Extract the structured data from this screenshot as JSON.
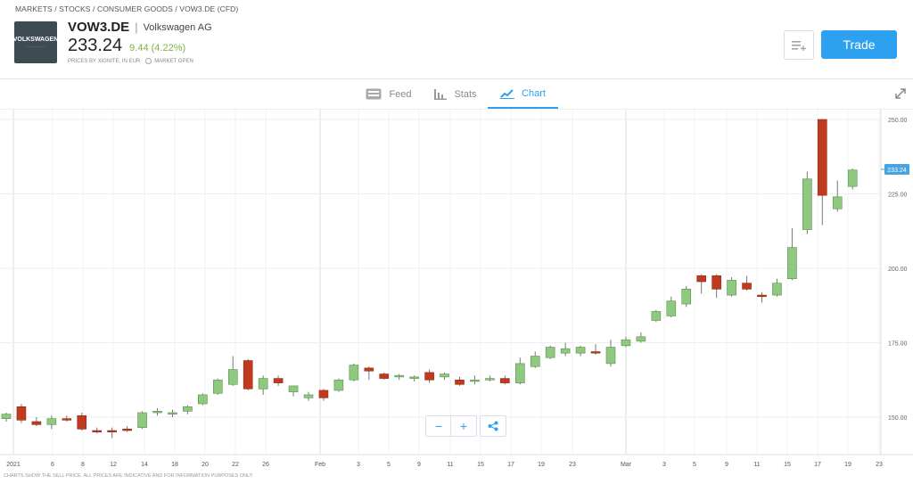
{
  "breadcrumb": "MARKETS / STOCKS / CONSUMER GOODS / VOW3.DE (CFD)",
  "logo": {
    "text": "VOLKSWAGEN"
  },
  "instrument": {
    "ticker": "VOW3.DE",
    "separator": "|",
    "company": "Volkswagen AG",
    "price": "233.24",
    "change": "9.44 (4.22%)",
    "prices_by": "PRICES BY XIGNITE, IN EUR",
    "market_status": "MARKET OPEN"
  },
  "buttons": {
    "trade": "Trade"
  },
  "tabs": [
    {
      "label": "Feed",
      "icon": "feed-icon"
    },
    {
      "label": "Stats",
      "icon": "stats-icon"
    },
    {
      "label": "Chart",
      "icon": "chart-icon"
    }
  ],
  "active_tab": "Chart",
  "chart_controls": {
    "zoom_out": "−",
    "zoom_in": "+",
    "share_icon": "share-icon"
  },
  "footer": "CHARTS SHOW THE SELL PRICE. ALL PRICES ARE INDICATIVE AND FOR INFORMATION PURPOSES ONLY.",
  "colors": {
    "up": "#8fc97f",
    "down": "#c23a1e",
    "accent": "#2ea0f0",
    "price_label": "#4aa3df"
  },
  "chart_data": {
    "type": "candlestick",
    "y_ticks": [
      "250.00",
      "225.00",
      "200.00",
      "175.00",
      "150.00"
    ],
    "ylim": [
      141,
      252
    ],
    "current_price_label": "233.24",
    "current_price": 233.24,
    "x_ticks": [
      "2021",
      "6",
      "8",
      "12",
      "14",
      "18",
      "20",
      "22",
      "26",
      "Feb",
      "3",
      "5",
      "9",
      "11",
      "15",
      "17",
      "19",
      "23",
      "Mar",
      "3",
      "5",
      "9",
      "11",
      "15",
      "17",
      "19",
      "23"
    ],
    "candles": [
      {
        "o": 149.5,
        "h": 151.5,
        "l": 148.5,
        "c": 151.0
      },
      {
        "o": 153.5,
        "h": 154.5,
        "l": 148.0,
        "c": 149.0
      },
      {
        "o": 148.5,
        "h": 150.0,
        "l": 147.0,
        "c": 147.5
      },
      {
        "o": 147.5,
        "h": 150.5,
        "l": 146.0,
        "c": 149.5
      },
      {
        "o": 149.5,
        "h": 150.5,
        "l": 148.5,
        "c": 149.0
      },
      {
        "o": 150.5,
        "h": 151.5,
        "l": 145.5,
        "c": 146.0
      },
      {
        "o": 145.5,
        "h": 146.5,
        "l": 144.5,
        "c": 145.0
      },
      {
        "o": 145.5,
        "h": 146.5,
        "l": 143.0,
        "c": 145.0
      },
      {
        "o": 146.0,
        "h": 147.0,
        "l": 145.0,
        "c": 145.5
      },
      {
        "o": 146.5,
        "h": 152.0,
        "l": 146.0,
        "c": 151.5
      },
      {
        "o": 151.5,
        "h": 153.0,
        "l": 150.5,
        "c": 152.0
      },
      {
        "o": 151.0,
        "h": 152.5,
        "l": 150.0,
        "c": 151.5
      },
      {
        "o": 152.0,
        "h": 154.0,
        "l": 151.0,
        "c": 153.5
      },
      {
        "o": 154.5,
        "h": 158.0,
        "l": 154.0,
        "c": 157.5
      },
      {
        "o": 158.0,
        "h": 163.0,
        "l": 157.5,
        "c": 162.5
      },
      {
        "o": 161.0,
        "h": 170.5,
        "l": 160.5,
        "c": 166.0
      },
      {
        "o": 169.0,
        "h": 169.5,
        "l": 159.0,
        "c": 159.5
      },
      {
        "o": 159.5,
        "h": 164.0,
        "l": 157.5,
        "c": 163.0
      },
      {
        "o": 163.0,
        "h": 164.0,
        "l": 160.5,
        "c": 161.5
      },
      {
        "o": 158.5,
        "h": 160.5,
        "l": 157.0,
        "c": 160.5
      },
      {
        "o": 156.5,
        "h": 158.5,
        "l": 155.5,
        "c": 157.5
      },
      {
        "o": 159.0,
        "h": 159.5,
        "l": 155.5,
        "c": 156.5
      },
      {
        "o": 159.0,
        "h": 163.0,
        "l": 158.5,
        "c": 162.5
      },
      {
        "o": 162.5,
        "h": 168.0,
        "l": 162.0,
        "c": 167.5
      },
      {
        "o": 166.5,
        "h": 167.0,
        "l": 162.5,
        "c": 165.5
      },
      {
        "o": 164.5,
        "h": 165.0,
        "l": 162.5,
        "c": 163.0
      },
      {
        "o": 163.5,
        "h": 164.5,
        "l": 162.5,
        "c": 164.0
      },
      {
        "o": 163.0,
        "h": 164.0,
        "l": 162.0,
        "c": 163.5
      },
      {
        "o": 165.0,
        "h": 166.0,
        "l": 161.5,
        "c": 162.5
      },
      {
        "o": 163.5,
        "h": 165.0,
        "l": 162.5,
        "c": 164.5
      },
      {
        "o": 162.5,
        "h": 163.5,
        "l": 160.5,
        "c": 161.0
      },
      {
        "o": 162.0,
        "h": 164.0,
        "l": 161.0,
        "c": 162.5
      },
      {
        "o": 162.5,
        "h": 164.0,
        "l": 162.0,
        "c": 163.0
      },
      {
        "o": 163.0,
        "h": 164.0,
        "l": 161.0,
        "c": 161.5
      },
      {
        "o": 161.5,
        "h": 170.0,
        "l": 161.0,
        "c": 168.0
      },
      {
        "o": 167.0,
        "h": 172.0,
        "l": 166.5,
        "c": 170.5
      },
      {
        "o": 170.0,
        "h": 174.0,
        "l": 169.5,
        "c": 173.5
      },
      {
        "o": 171.5,
        "h": 175.0,
        "l": 170.5,
        "c": 173.0
      },
      {
        "o": 171.5,
        "h": 174.0,
        "l": 170.5,
        "c": 173.5
      },
      {
        "o": 172.0,
        "h": 174.5,
        "l": 171.0,
        "c": 171.5
      },
      {
        "o": 168.0,
        "h": 176.0,
        "l": 167.0,
        "c": 173.5
      },
      {
        "o": 174.0,
        "h": 177.0,
        "l": 173.5,
        "c": 176.0
      },
      {
        "o": 175.5,
        "h": 178.5,
        "l": 175.0,
        "c": 177.0
      },
      {
        "o": 182.5,
        "h": 186.0,
        "l": 182.0,
        "c": 185.5
      },
      {
        "o": 184.0,
        "h": 190.5,
        "l": 183.5,
        "c": 189.0
      },
      {
        "o": 188.0,
        "h": 194.0,
        "l": 187.0,
        "c": 193.0
      },
      {
        "o": 197.5,
        "h": 198.0,
        "l": 191.5,
        "c": 195.5
      },
      {
        "o": 197.5,
        "h": 198.0,
        "l": 190.0,
        "c": 193.0
      },
      {
        "o": 191.0,
        "h": 197.0,
        "l": 190.5,
        "c": 196.0
      },
      {
        "o": 195.0,
        "h": 197.5,
        "l": 192.5,
        "c": 193.0
      },
      {
        "o": 191.0,
        "h": 192.0,
        "l": 188.5,
        "c": 190.5
      },
      {
        "o": 191.0,
        "h": 196.5,
        "l": 190.5,
        "c": 195.0
      },
      {
        "o": 196.5,
        "h": 213.5,
        "l": 196.0,
        "c": 207.0
      },
      {
        "o": 213.0,
        "h": 232.5,
        "l": 211.5,
        "c": 230.0
      },
      {
        "o": 250.0,
        "h": 250.0,
        "l": 214.5,
        "c": 224.5
      },
      {
        "o": 220.0,
        "h": 229.5,
        "l": 219.0,
        "c": 224.0
      },
      {
        "o": 227.5,
        "h": 233.5,
        "l": 226.5,
        "c": 233.0
      }
    ]
  }
}
